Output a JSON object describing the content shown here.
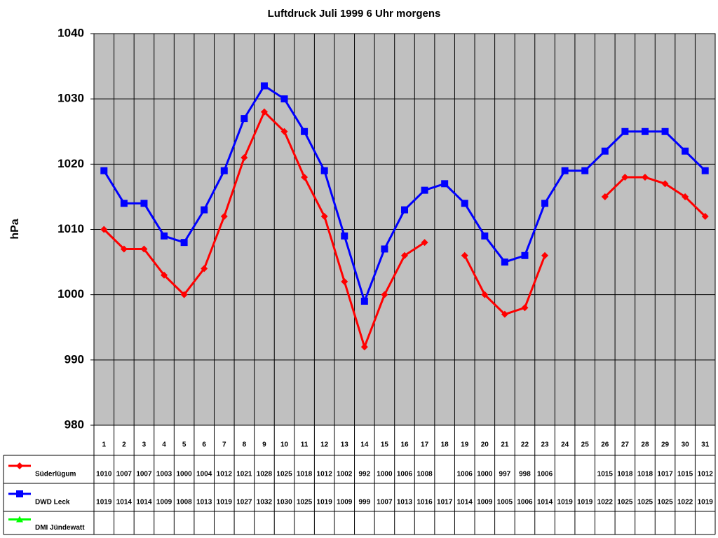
{
  "chart_data": {
    "type": "line",
    "title": "Luftdruck Juli 1999 6 Uhr morgens",
    "y_label": "hPa",
    "categories": [
      "1",
      "2",
      "3",
      "4",
      "5",
      "6",
      "7",
      "8",
      "9",
      "10",
      "11",
      "12",
      "13",
      "14",
      "15",
      "16",
      "17",
      "18",
      "19",
      "20",
      "21",
      "22",
      "23",
      "24",
      "25",
      "26",
      "27",
      "28",
      "29",
      "30",
      "31"
    ],
    "series": [
      {
        "name": "Süderlügum",
        "color": "#ff0000",
        "marker": "diamond",
        "values": [
          1010,
          1007,
          1007,
          1003,
          1000,
          1004,
          1012,
          1021,
          1028,
          1025,
          1018,
          1012,
          1002,
          992,
          1000,
          1006,
          1008,
          null,
          1006,
          1000,
          997,
          998,
          1006,
          null,
          null,
          1015,
          1018,
          1018,
          1017,
          1015,
          1012
        ]
      },
      {
        "name": "DWD Leck",
        "color": "#0000ff",
        "marker": "square",
        "values": [
          1019,
          1014,
          1014,
          1009,
          1008,
          1013,
          1019,
          1027,
          1032,
          1030,
          1025,
          1019,
          1009,
          999,
          1007,
          1013,
          1016,
          1017,
          1014,
          1009,
          1005,
          1006,
          1014,
          1019,
          1019,
          1022,
          1025,
          1025,
          1025,
          1022,
          1019
        ]
      },
      {
        "name": "DMI Jündewatt",
        "color": "#00ff00",
        "marker": "triangle",
        "values": [
          null,
          null,
          null,
          null,
          null,
          null,
          null,
          null,
          null,
          null,
          null,
          null,
          null,
          null,
          null,
          null,
          null,
          null,
          null,
          null,
          null,
          null,
          null,
          null,
          null,
          null,
          null,
          null,
          null,
          null,
          null
        ]
      }
    ],
    "ylim": [
      980,
      1040
    ],
    "yticks": [
      980,
      990,
      1000,
      1010,
      1020,
      1030,
      1040
    ],
    "grid": true,
    "plot_background": "#c0c0c0"
  }
}
